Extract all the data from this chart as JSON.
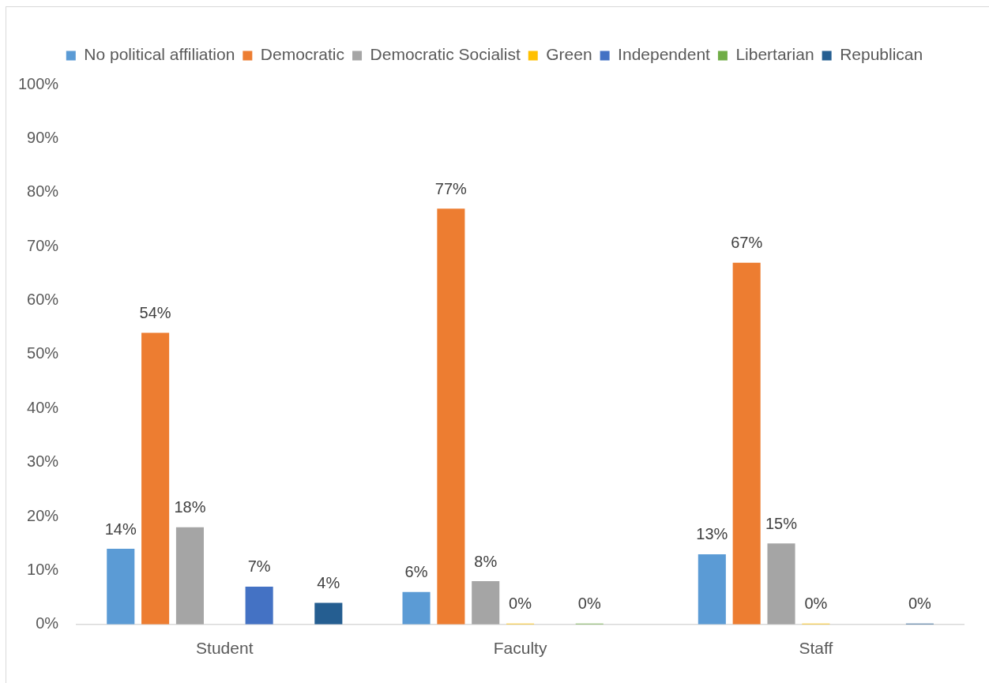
{
  "chart_data": {
    "type": "bar",
    "categories": [
      "Student",
      "Faculty",
      "Staff"
    ],
    "series": [
      {
        "name": "No political affiliation",
        "color": "#5b9bd5",
        "values": [
          14,
          6,
          13
        ],
        "value_labels": [
          "14%",
          "6%",
          "13%"
        ]
      },
      {
        "name": "Democratic",
        "color": "#ed7d31",
        "values": [
          54,
          77,
          67
        ],
        "value_labels": [
          "54%",
          "77%",
          "67%"
        ]
      },
      {
        "name": "Democratic Socialist",
        "color": "#a5a5a5",
        "values": [
          18,
          8,
          15
        ],
        "value_labels": [
          "18%",
          "8%",
          "15%"
        ]
      },
      {
        "name": "Green",
        "color": "#ffc000",
        "values": [
          null,
          0,
          0
        ],
        "value_labels": [
          null,
          "0%",
          "0%"
        ]
      },
      {
        "name": "Independent",
        "color": "#4472c4",
        "values": [
          7,
          null,
          null
        ],
        "value_labels": [
          "7%",
          null,
          null
        ]
      },
      {
        "name": "Libertarian",
        "color": "#70ad47",
        "values": [
          null,
          0,
          null
        ],
        "value_labels": [
          null,
          "0%",
          null
        ]
      },
      {
        "name": "Republican",
        "color": "#255e91",
        "values": [
          4,
          null,
          0
        ],
        "value_labels": [
          "4%",
          null,
          "0%"
        ]
      }
    ],
    "ylim": [
      0,
      100
    ],
    "yticks": [
      {
        "value": 0,
        "label": "0%"
      },
      {
        "value": 10,
        "label": "10%"
      },
      {
        "value": 20,
        "label": "20%"
      },
      {
        "value": 30,
        "label": "30%"
      },
      {
        "value": 40,
        "label": "40%"
      },
      {
        "value": 50,
        "label": "50%"
      },
      {
        "value": 60,
        "label": "60%"
      },
      {
        "value": 70,
        "label": "70%"
      },
      {
        "value": 80,
        "label": "80%"
      },
      {
        "value": 90,
        "label": "90%"
      },
      {
        "value": 100,
        "label": "100%"
      }
    ],
    "legend": "top"
  }
}
